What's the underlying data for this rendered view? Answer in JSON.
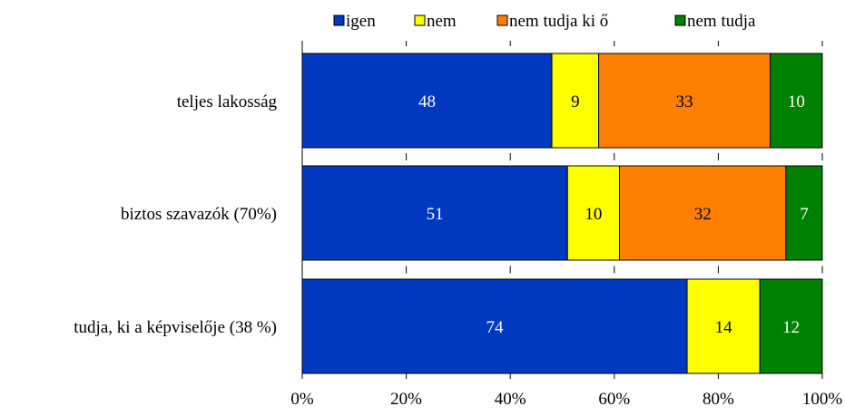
{
  "chart_data": {
    "type": "bar",
    "orientation": "horizontal",
    "stacked": "percent",
    "categories": [
      "teljes lakosság",
      "biztos szavazók (70%)",
      "tudja, ki a képviselője (38 %)"
    ],
    "series": [
      {
        "name": "igen",
        "values": [
          48,
          51,
          74
        ]
      },
      {
        "name": "nem",
        "values": [
          9,
          10,
          14
        ]
      },
      {
        "name": "nem tudja ki ő",
        "values": [
          33,
          32,
          0
        ]
      },
      {
        "name": "nem tudja",
        "values": [
          10,
          7,
          12
        ]
      }
    ],
    "colors": [
      "#0038BF",
      "#FFFF00",
      "#FF8000",
      "#008000"
    ],
    "label_colors": [
      "#ffffff",
      "#000000",
      "#000000",
      "#ffffff"
    ],
    "xlim": [
      0,
      100
    ],
    "x_ticks": [
      "0%",
      "20%",
      "40%",
      "60%",
      "80%",
      "100%"
    ],
    "legend_position": "top",
    "grid": false,
    "data_labels": true
  }
}
